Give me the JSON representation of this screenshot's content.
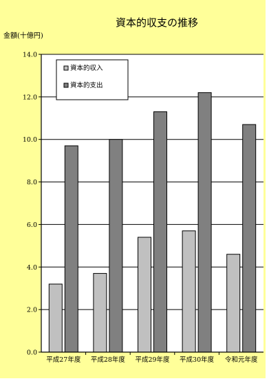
{
  "chart_data": {
    "type": "bar",
    "title": "資本的収支の推移",
    "ylabel": "金額(十億円)",
    "xlabel": "",
    "categories": [
      "平成27年度",
      "平成28年度",
      "平成29年度",
      "平成30年度",
      "令和元年度"
    ],
    "series": [
      {
        "name": "資本的収入",
        "values": [
          3.2,
          3.7,
          5.4,
          5.7,
          4.6
        ],
        "color": "#c0c0c0"
      },
      {
        "name": "資本的支出",
        "values": [
          9.7,
          10.0,
          11.3,
          12.2,
          10.7
        ],
        "color": "#808080"
      }
    ],
    "ylim": [
      0,
      14
    ],
    "yticks": [
      "0.0",
      "2.0",
      "4.0",
      "6.0",
      "8.0",
      "10.0",
      "12.0",
      "14.0"
    ],
    "grid": true,
    "legend_position": "top-left",
    "background_color": "#ffff99",
    "plot_background_color": "#ffffff"
  }
}
